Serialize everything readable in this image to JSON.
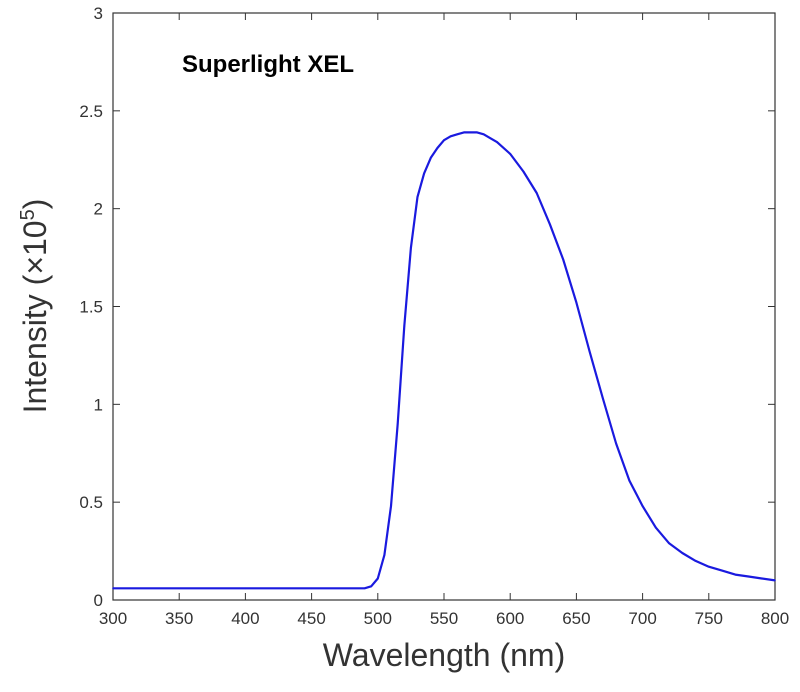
{
  "chart_data": {
    "type": "line",
    "title": "Superlight XEL",
    "xlabel": "Wavelength (nm)",
    "ylabel": "Intensity (×10",
    "ylabel_exponent": "5",
    "ylabel_suffix": ")",
    "xlim": [
      300,
      800
    ],
    "ylim": [
      0,
      3
    ],
    "x_ticks": [
      "300",
      "350",
      "400",
      "450",
      "500",
      "550",
      "600",
      "650",
      "700",
      "750",
      "800"
    ],
    "y_ticks": [
      "0",
      "0.5",
      "1",
      "1.5",
      "2",
      "2.5",
      "3"
    ],
    "grid": false,
    "line_color": "#1a1adf",
    "series": [
      {
        "x": [
          300,
          350,
          400,
          450,
          490,
          495,
          500,
          505,
          510,
          515,
          520,
          525,
          530,
          535,
          540,
          545,
          550,
          555,
          560,
          565,
          570,
          575,
          580,
          585,
          590,
          600,
          610,
          620,
          630,
          640,
          650,
          660,
          670,
          680,
          690,
          700,
          710,
          720,
          730,
          740,
          750,
          760,
          770,
          780,
          790,
          800
        ],
        "values": [
          0.06,
          0.06,
          0.06,
          0.06,
          0.06,
          0.07,
          0.11,
          0.23,
          0.48,
          0.9,
          1.4,
          1.8,
          2.06,
          2.18,
          2.26,
          2.31,
          2.35,
          2.37,
          2.38,
          2.39,
          2.39,
          2.39,
          2.38,
          2.36,
          2.34,
          2.28,
          2.19,
          2.08,
          1.92,
          1.74,
          1.52,
          1.27,
          1.03,
          0.8,
          0.61,
          0.48,
          0.37,
          0.29,
          0.24,
          0.2,
          0.17,
          0.15,
          0.13,
          0.12,
          0.11,
          0.1
        ]
      }
    ]
  }
}
